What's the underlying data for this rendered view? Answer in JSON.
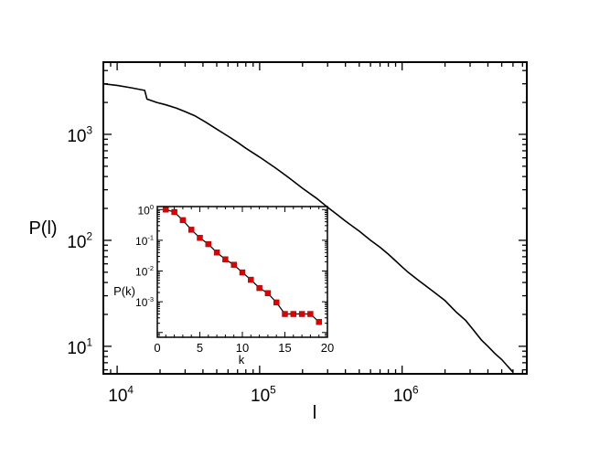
{
  "chart_data": [
    {
      "type": "line",
      "title": "",
      "xlabel": "l",
      "ylabel": "P(l)",
      "xscale": "log",
      "yscale": "log",
      "xlim": [
        8000,
        7500000
      ],
      "ylim": [
        5.5,
        4800
      ],
      "grid": false,
      "x_ticks": [
        {
          "value": 10000,
          "mantissa": "10",
          "exponent": "4"
        },
        {
          "value": 100000,
          "mantissa": "10",
          "exponent": "5"
        },
        {
          "value": 1000000,
          "mantissa": "10",
          "exponent": "6"
        }
      ],
      "y_ticks": [
        {
          "value": 10,
          "mantissa": "10",
          "exponent": "1"
        },
        {
          "value": 100,
          "mantissa": "10",
          "exponent": "2"
        },
        {
          "value": 1000,
          "mantissa": "10",
          "exponent": "3"
        }
      ],
      "series": [
        {
          "color": "#000000",
          "x": [
            8000,
            10000,
            12500,
            15600,
            16200,
            19000,
            22000,
            26000,
            30000,
            35000,
            42000,
            50000,
            60000,
            70000,
            80000,
            100000,
            130000,
            160000,
            200000,
            250000,
            300000,
            350000,
            400000,
            500000,
            600000,
            700000,
            800000,
            900000,
            1000000,
            1100000,
            1300000,
            1600000,
            2000000,
            2400000,
            2800000,
            3200000,
            3600000,
            4000000,
            4500000,
            5000000,
            5500000,
            6000000
          ],
          "y": [
            3000,
            2900,
            2750,
            2600,
            2150,
            2000,
            1900,
            1770,
            1640,
            1500,
            1300,
            1120,
            960,
            840,
            740,
            610,
            480,
            390,
            310,
            250,
            205,
            175,
            152,
            122,
            100,
            86,
            74,
            64,
            56,
            50,
            42,
            34,
            27,
            21,
            17.5,
            14,
            11.5,
            10,
            8.5,
            7.5,
            6.5,
            5.7
          ]
        }
      ]
    },
    {
      "type": "line",
      "title": "",
      "xlabel": "k",
      "ylabel": "P(k)",
      "xscale": "linear",
      "yscale": "log",
      "xlim": [
        0,
        20
      ],
      "ylim": [
        7e-05,
        1.25
      ],
      "grid": false,
      "x_ticks": [
        {
          "value": 0,
          "label": "0"
        },
        {
          "value": 5,
          "label": "5"
        },
        {
          "value": 10,
          "label": "10"
        },
        {
          "value": 15,
          "label": "15"
        },
        {
          "value": 20,
          "label": "20"
        }
      ],
      "y_ticks": [
        {
          "value": 1,
          "mantissa": "10",
          "exponent": "0"
        },
        {
          "value": 0.1,
          "mantissa": "10",
          "exponent": "-1"
        },
        {
          "value": 0.01,
          "mantissa": "10",
          "exponent": "-2"
        },
        {
          "value": 0.001,
          "mantissa": "10",
          "exponent": "-3"
        }
      ],
      "series": [
        {
          "color": "#000000",
          "marker": "square",
          "marker_color": "#e00000",
          "x": [
            1,
            2,
            3,
            4,
            5,
            6,
            7,
            8,
            9,
            10,
            11,
            12,
            13,
            14,
            15,
            16,
            17,
            18,
            19
          ],
          "y": [
            1.0,
            0.83,
            0.45,
            0.22,
            0.12,
            0.075,
            0.04,
            0.024,
            0.016,
            0.009,
            0.0052,
            0.0028,
            0.0019,
            0.00095,
            0.0004,
            0.0004,
            0.0004,
            0.0004,
            0.00022
          ]
        }
      ]
    }
  ]
}
